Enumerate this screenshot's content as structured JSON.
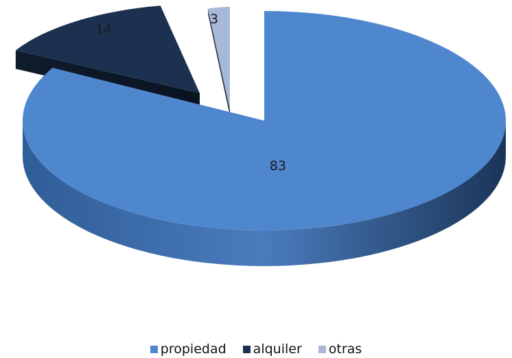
{
  "chart_data": {
    "type": "pie",
    "style": "3d-exploded",
    "title": "",
    "categories": [
      "propiedad",
      "alquiler",
      "otras"
    ],
    "values": [
      83,
      14,
      3
    ],
    "data_labels": [
      "83",
      "14",
      "3"
    ],
    "colors": [
      "#4f87cf",
      "#1c3150",
      "#a7b8d8"
    ],
    "legend_position": "bottom"
  }
}
